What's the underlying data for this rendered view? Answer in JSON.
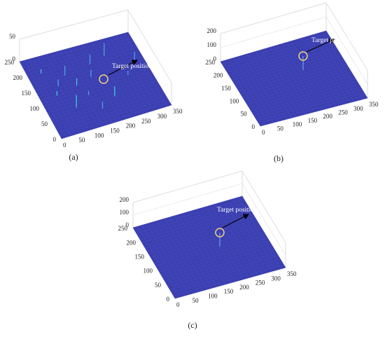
{
  "panels": [
    {
      "caption": "(a)",
      "annotation": "Target position",
      "z_ticks": [
        0,
        50
      ],
      "y_ticks": [
        0,
        50,
        100,
        150,
        200,
        250
      ],
      "x_ticks": [
        0,
        50,
        100,
        150,
        200,
        250,
        300,
        350
      ]
    },
    {
      "caption": "(b)",
      "annotation": "Target position",
      "z_ticks": [
        0,
        100,
        200
      ],
      "y_ticks": [
        0,
        50,
        100,
        150,
        200,
        250
      ],
      "x_ticks": [
        0,
        50,
        100,
        150,
        200,
        250,
        300,
        350
      ]
    },
    {
      "caption": "(c)",
      "annotation": "Target position",
      "z_ticks": [
        0,
        100,
        200
      ],
      "y_ticks": [
        0,
        50,
        100,
        150,
        200,
        250
      ],
      "x_ticks": [
        0,
        50,
        100,
        150,
        200,
        250,
        300,
        350
      ]
    }
  ]
}
